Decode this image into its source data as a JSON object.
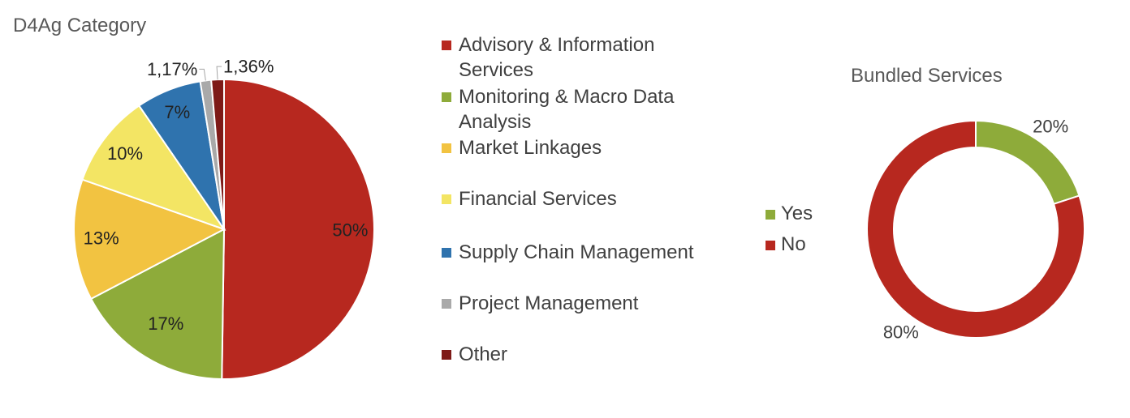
{
  "chart_data": [
    {
      "type": "pie",
      "title": "D4Ag Category",
      "legend_position": "right",
      "categories": [
        "Advisory & Information Services",
        "Monitoring & Macro Data Analysis",
        "Market Linkages",
        "Financial Services",
        "Supply Chain Management",
        "Project Management",
        "Other"
      ],
      "values": [
        50,
        17,
        13,
        10,
        7,
        1.17,
        1.36
      ],
      "labels": [
        "50%",
        "17%",
        "13%",
        "10%",
        "7%",
        "1,17%",
        "1,36%"
      ],
      "colors": [
        "#B7281F",
        "#8EAB3A",
        "#F2C341",
        "#F3E564",
        "#2F73AE",
        "#A9A9A9",
        "#7E1A17"
      ]
    },
    {
      "type": "pie",
      "subtype": "donut",
      "title": "Bundled Services",
      "legend_position": "left",
      "categories": [
        "Yes",
        "No"
      ],
      "values": [
        20,
        80
      ],
      "labels": [
        "20%",
        "80%"
      ],
      "colors": [
        "#8EAB3A",
        "#B7281F"
      ]
    }
  ]
}
